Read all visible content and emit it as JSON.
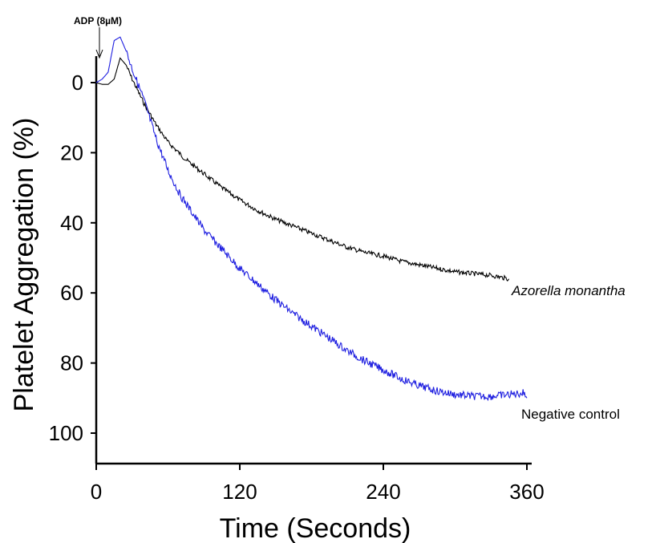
{
  "chart_data": {
    "type": "line",
    "xlabel": "Time (Seconds)",
    "ylabel": "Platelet Aggregation  (%)",
    "xlim": [
      0,
      360
    ],
    "ylim": [
      0,
      100
    ],
    "y_inverted": true,
    "x_ticks": [
      0,
      120,
      240,
      360
    ],
    "y_ticks": [
      0,
      20,
      40,
      60,
      80,
      100
    ],
    "grid": false,
    "annotation": "ADP (8µM)",
    "annotation_x": 5,
    "series": [
      {
        "name": "Azorella monantha",
        "color": "#000000",
        "x": [
          0,
          5,
          10,
          15,
          20,
          25,
          30,
          40,
          50,
          60,
          75,
          90,
          105,
          120,
          135,
          150,
          165,
          180,
          195,
          210,
          225,
          240,
          255,
          270,
          285,
          300,
          315,
          330,
          345
        ],
        "y": [
          0,
          0.5,
          0.5,
          -1,
          -7,
          -5,
          -1,
          6,
          12,
          17,
          22,
          26,
          30,
          33.5,
          36.5,
          39,
          41,
          43,
          45,
          47,
          48.5,
          49.5,
          51,
          52,
          53,
          54,
          54.5,
          55,
          56
        ]
      },
      {
        "name": "Negative control",
        "color": "#1f1fe0",
        "x": [
          0,
          5,
          10,
          15,
          20,
          25,
          30,
          40,
          50,
          60,
          70,
          80,
          90,
          105,
          120,
          135,
          150,
          165,
          180,
          195,
          210,
          225,
          240,
          255,
          270,
          285,
          300,
          315,
          330,
          345,
          358,
          360
        ],
        "y": [
          0,
          -1,
          -3,
          -12,
          -13,
          -9,
          -4,
          5,
          16,
          25,
          32,
          37,
          42,
          47.5,
          53,
          57.5,
          62,
          66,
          69.5,
          73,
          76.5,
          79.5,
          82,
          84.5,
          86.5,
          88,
          89,
          89.5,
          89.5,
          89,
          88.5,
          90
        ]
      }
    ]
  },
  "labels": {
    "azorella": "Azorella monantha",
    "negative": "Negative control"
  }
}
